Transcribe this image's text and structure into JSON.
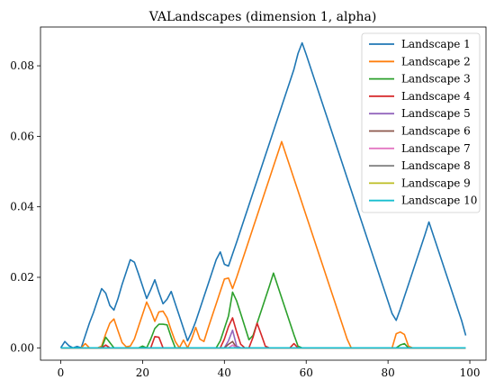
{
  "chart_data": {
    "type": "line",
    "title": "VALandscapes (dimension 1, alpha)",
    "xlabel": "",
    "ylabel": "",
    "xlim": [
      -4.95,
      103.95
    ],
    "ylim": [
      -0.0035,
      0.091
    ],
    "xticks": [
      0,
      20,
      40,
      60,
      80,
      100
    ],
    "yticks": [
      0.0,
      0.02,
      0.04,
      0.06,
      0.08
    ],
    "ytick_labels": [
      "0.00",
      "0.02",
      "0.04",
      "0.06",
      "0.08"
    ],
    "grid": false,
    "legend_position": "top-right",
    "series": [
      {
        "name": "Landscape 1",
        "color": "#1f77b4",
        "points": [
          [
            0,
            0
          ],
          [
            1,
            0.0018
          ],
          [
            2,
            0.0006
          ],
          [
            3,
            0
          ],
          [
            4,
            0.0004
          ],
          [
            5,
            0
          ],
          [
            6,
            0.0035
          ],
          [
            7,
            0.007
          ],
          [
            8,
            0.01
          ],
          [
            9,
            0.0135
          ],
          [
            10,
            0.0168
          ],
          [
            11,
            0.0155
          ],
          [
            12,
            0.012
          ],
          [
            13,
            0.0107
          ],
          [
            14,
            0.014
          ],
          [
            15,
            0.018
          ],
          [
            16,
            0.0215
          ],
          [
            17,
            0.025
          ],
          [
            18,
            0.0243
          ],
          [
            19,
            0.021
          ],
          [
            20,
            0.0175
          ],
          [
            21,
            0.014
          ],
          [
            22,
            0.0165
          ],
          [
            23,
            0.0193
          ],
          [
            24,
            0.0157
          ],
          [
            25,
            0.0125
          ],
          [
            26,
            0.0138
          ],
          [
            27,
            0.016
          ],
          [
            28,
            0.0125
          ],
          [
            29,
            0.009
          ],
          [
            30,
            0.0055
          ],
          [
            31,
            0.002
          ],
          [
            32,
            0.0045
          ],
          [
            33,
            0.0075
          ],
          [
            34,
            0.011
          ],
          [
            35,
            0.0145
          ],
          [
            36,
            0.018
          ],
          [
            37,
            0.0215
          ],
          [
            38,
            0.025
          ],
          [
            39,
            0.0272
          ],
          [
            40,
            0.0237
          ],
          [
            41,
            0.0232
          ],
          [
            42,
            0.0266
          ],
          [
            43,
            0.03
          ],
          [
            44,
            0.0335
          ],
          [
            45,
            0.037
          ],
          [
            46,
            0.0405
          ],
          [
            47,
            0.044
          ],
          [
            48,
            0.0475
          ],
          [
            49,
            0.051
          ],
          [
            50,
            0.0545
          ],
          [
            51,
            0.058
          ],
          [
            52,
            0.0615
          ],
          [
            53,
            0.065
          ],
          [
            54,
            0.0685
          ],
          [
            55,
            0.072
          ],
          [
            56,
            0.0755
          ],
          [
            57,
            0.079
          ],
          [
            58,
            0.0835
          ],
          [
            59,
            0.0865
          ],
          [
            60,
            0.0832
          ],
          [
            61,
            0.0797
          ],
          [
            62,
            0.0762
          ],
          [
            63,
            0.0727
          ],
          [
            64,
            0.0692
          ],
          [
            65,
            0.0657
          ],
          [
            66,
            0.0622
          ],
          [
            67,
            0.0587
          ],
          [
            68,
            0.0552
          ],
          [
            69,
            0.0517
          ],
          [
            70,
            0.0482
          ],
          [
            71,
            0.0447
          ],
          [
            72,
            0.0412
          ],
          [
            73,
            0.0377
          ],
          [
            74,
            0.0342
          ],
          [
            75,
            0.0307
          ],
          [
            76,
            0.0272
          ],
          [
            77,
            0.0237
          ],
          [
            78,
            0.0202
          ],
          [
            79,
            0.0167
          ],
          [
            80,
            0.0132
          ],
          [
            81,
            0.0097
          ],
          [
            82,
            0.0078
          ],
          [
            83,
            0.011
          ],
          [
            84,
            0.0145
          ],
          [
            85,
            0.018
          ],
          [
            86,
            0.0215
          ],
          [
            87,
            0.025
          ],
          [
            88,
            0.0285
          ],
          [
            89,
            0.032
          ],
          [
            90,
            0.0357
          ],
          [
            91,
            0.0322
          ],
          [
            92,
            0.0287
          ],
          [
            93,
            0.0252
          ],
          [
            94,
            0.0217
          ],
          [
            95,
            0.0182
          ],
          [
            96,
            0.0147
          ],
          [
            97,
            0.0112
          ],
          [
            98,
            0.0077
          ],
          [
            99,
            0.0035
          ]
        ]
      },
      {
        "name": "Landscape 2",
        "color": "#ff7f0e",
        "points": [
          [
            0,
            0
          ],
          [
            5,
            0
          ],
          [
            6,
            0.0012
          ],
          [
            7,
            0
          ],
          [
            9,
            0
          ],
          [
            10,
            0.0005
          ],
          [
            11,
            0.004
          ],
          [
            12,
            0.007
          ],
          [
            13,
            0.0082
          ],
          [
            14,
            0.0048
          ],
          [
            15,
            0.0015
          ],
          [
            16,
            0.0003
          ],
          [
            17,
            0.0005
          ],
          [
            18,
            0.0025
          ],
          [
            19,
            0.006
          ],
          [
            20,
            0.0095
          ],
          [
            21,
            0.013
          ],
          [
            22,
            0.0105
          ],
          [
            23,
            0.0075
          ],
          [
            24,
            0.0102
          ],
          [
            25,
            0.0104
          ],
          [
            26,
            0.0085
          ],
          [
            27,
            0.005
          ],
          [
            28,
            0.0018
          ],
          [
            29,
            0
          ],
          [
            30,
            0.0022
          ],
          [
            31,
            0
          ],
          [
            32,
            0.0025
          ],
          [
            33,
            0.0058
          ],
          [
            34,
            0.0025
          ],
          [
            35,
            0.0018
          ],
          [
            36,
            0.0055
          ],
          [
            37,
            0.009
          ],
          [
            38,
            0.0125
          ],
          [
            39,
            0.016
          ],
          [
            40,
            0.0195
          ],
          [
            41,
            0.0198
          ],
          [
            42,
            0.0168
          ],
          [
            43,
            0.02
          ],
          [
            44,
            0.0235
          ],
          [
            45,
            0.027
          ],
          [
            46,
            0.0305
          ],
          [
            47,
            0.034
          ],
          [
            48,
            0.0375
          ],
          [
            49,
            0.041
          ],
          [
            50,
            0.0445
          ],
          [
            51,
            0.048
          ],
          [
            52,
            0.0515
          ],
          [
            53,
            0.055
          ],
          [
            54,
            0.0585
          ],
          [
            55,
            0.055
          ],
          [
            56,
            0.0515
          ],
          [
            57,
            0.048
          ],
          [
            58,
            0.0445
          ],
          [
            59,
            0.041
          ],
          [
            60,
            0.0375
          ],
          [
            61,
            0.034
          ],
          [
            62,
            0.0305
          ],
          [
            63,
            0.027
          ],
          [
            64,
            0.0235
          ],
          [
            65,
            0.02
          ],
          [
            66,
            0.0165
          ],
          [
            67,
            0.013
          ],
          [
            68,
            0.0095
          ],
          [
            69,
            0.006
          ],
          [
            70,
            0.0025
          ],
          [
            71,
            0
          ],
          [
            81,
            0
          ],
          [
            82,
            0.004
          ],
          [
            83,
            0.0045
          ],
          [
            84,
            0.0038
          ],
          [
            85,
            0.0005
          ],
          [
            86,
            0
          ],
          [
            99,
            0
          ]
        ]
      },
      {
        "name": "Landscape 3",
        "color": "#2ca02c",
        "points": [
          [
            0,
            0
          ],
          [
            10,
            0
          ],
          [
            11,
            0.003
          ],
          [
            12,
            0.0015
          ],
          [
            13,
            0
          ],
          [
            14,
            0
          ],
          [
            19,
            0
          ],
          [
            20,
            0.0005
          ],
          [
            21,
            0
          ],
          [
            22,
            0.0025
          ],
          [
            23,
            0.0055
          ],
          [
            24,
            0.0067
          ],
          [
            25,
            0.0067
          ],
          [
            26,
            0.0065
          ],
          [
            27,
            0.003
          ],
          [
            28,
            0
          ],
          [
            38,
            0
          ],
          [
            39,
            0.002
          ],
          [
            40,
            0.0055
          ],
          [
            41,
            0.009
          ],
          [
            42,
            0.0158
          ],
          [
            43,
            0.0133
          ],
          [
            44,
            0.0097
          ],
          [
            45,
            0.006
          ],
          [
            46,
            0.0023
          ],
          [
            47,
            0.0035
          ],
          [
            48,
            0.007
          ],
          [
            49,
            0.0105
          ],
          [
            50,
            0.014
          ],
          [
            51,
            0.0175
          ],
          [
            52,
            0.0212
          ],
          [
            53,
            0.0177
          ],
          [
            54,
            0.0142
          ],
          [
            55,
            0.0107
          ],
          [
            56,
            0.0072
          ],
          [
            57,
            0.0037
          ],
          [
            58,
            0.0005
          ],
          [
            59,
            0
          ],
          [
            82,
            0
          ],
          [
            83,
            0.0008
          ],
          [
            84,
            0.0012
          ],
          [
            85,
            0
          ],
          [
            99,
            0
          ]
        ]
      },
      {
        "name": "Landscape 4",
        "color": "#d62728",
        "points": [
          [
            0,
            0
          ],
          [
            10,
            0
          ],
          [
            11,
            0.0008
          ],
          [
            12,
            0
          ],
          [
            22,
            0
          ],
          [
            23,
            0.0032
          ],
          [
            24,
            0.003
          ],
          [
            25,
            0
          ],
          [
            39,
            0
          ],
          [
            40,
            0.0025
          ],
          [
            41,
            0.006
          ],
          [
            42,
            0.0085
          ],
          [
            43,
            0.0045
          ],
          [
            44,
            0.001
          ],
          [
            45,
            0
          ],
          [
            46,
            0
          ],
          [
            47,
            0.003
          ],
          [
            48,
            0.007
          ],
          [
            49,
            0.0038
          ],
          [
            50,
            0.0005
          ],
          [
            51,
            0
          ],
          [
            56,
            0
          ],
          [
            57,
            0.0012
          ],
          [
            58,
            0
          ],
          [
            99,
            0
          ]
        ]
      },
      {
        "name": "Landscape 5",
        "color": "#9467bd",
        "points": [
          [
            0,
            0
          ],
          [
            40,
            0
          ],
          [
            41,
            0.002
          ],
          [
            42,
            0.005
          ],
          [
            43,
            0.0005
          ],
          [
            44,
            0
          ],
          [
            99,
            0
          ]
        ]
      },
      {
        "name": "Landscape 6",
        "color": "#8c564b",
        "points": [
          [
            0,
            0
          ],
          [
            40,
            0
          ],
          [
            41,
            0.001
          ],
          [
            42,
            0.0018
          ],
          [
            43,
            0
          ],
          [
            99,
            0
          ]
        ]
      },
      {
        "name": "Landscape 7",
        "color": "#e377c2",
        "points": [
          [
            0,
            0
          ],
          [
            41,
            0
          ],
          [
            42,
            0.0008
          ],
          [
            43,
            0
          ],
          [
            99,
            0
          ]
        ]
      },
      {
        "name": "Landscape 8",
        "color": "#7f7f7f",
        "points": [
          [
            0,
            0
          ],
          [
            99,
            0
          ]
        ]
      },
      {
        "name": "Landscape 9",
        "color": "#bcbd22",
        "points": [
          [
            0,
            0
          ],
          [
            99,
            0
          ]
        ]
      },
      {
        "name": "Landscape 10",
        "color": "#17becf",
        "points": [
          [
            0,
            0
          ],
          [
            99,
            0
          ]
        ]
      }
    ]
  }
}
